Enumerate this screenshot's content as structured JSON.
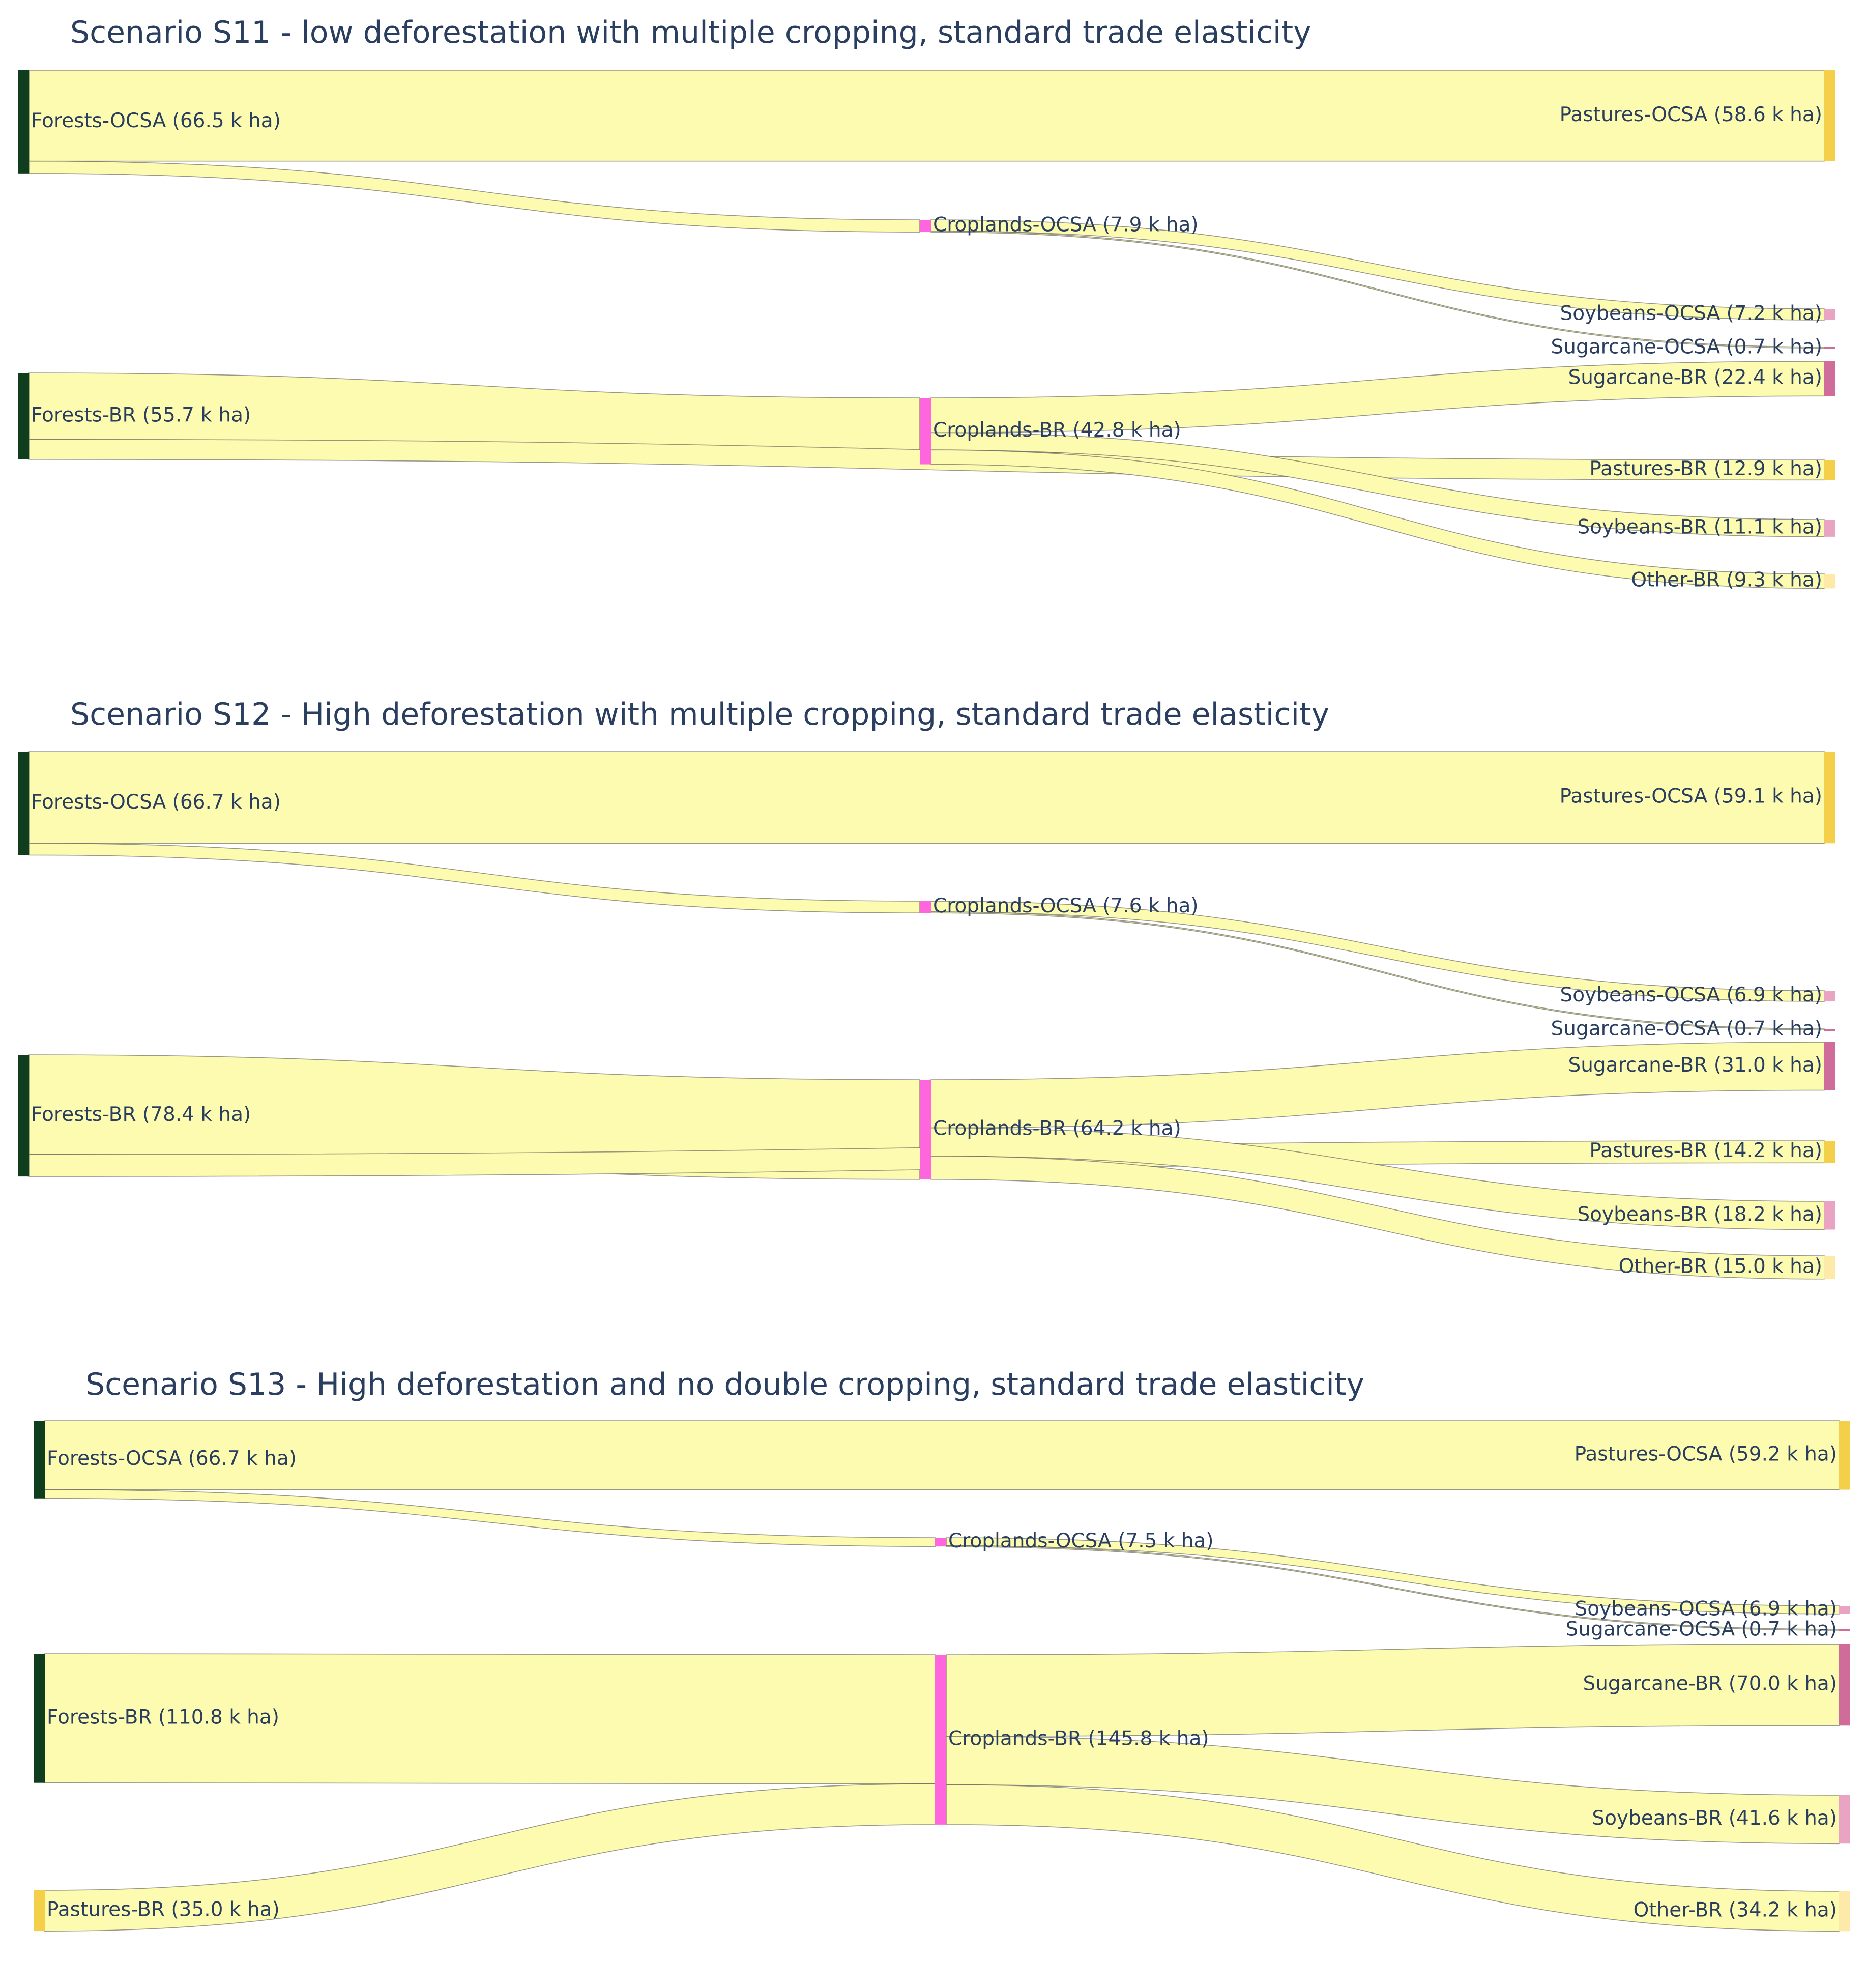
{
  "colors": {
    "forest": "#0f3d1e",
    "pasture": "#f4d04a",
    "cropland": "#ff66dd",
    "soybeans": "#e8a4c2",
    "sugarcane": "#d06c9a",
    "other": "#fde9a8",
    "link": "#fdfbb0"
  },
  "chart_data": [
    {
      "type": "sankey",
      "title": "Scenario S11 - low deforestation with multiple cropping, standard trade elasticity",
      "nodes": [
        {
          "id": "f_ocsa",
          "label": "Forests-OCSA (66.5 k ha)",
          "value": 66.5,
          "stage": 0,
          "color": "forest"
        },
        {
          "id": "f_br",
          "label": "Forests-BR (55.7 k ha)",
          "value": 55.7,
          "stage": 0,
          "color": "forest"
        },
        {
          "id": "c_ocsa",
          "label": "Croplands-OCSA (7.9 k ha)",
          "value": 7.9,
          "stage": 1,
          "color": "cropland"
        },
        {
          "id": "c_br",
          "label": "Croplands-BR (42.8 k ha)",
          "value": 42.8,
          "stage": 1,
          "color": "cropland"
        },
        {
          "id": "p_ocsa",
          "label": "Pastures-OCSA (58.6 k ha)",
          "value": 58.6,
          "stage": 2,
          "color": "pasture"
        },
        {
          "id": "s_ocsa",
          "label": "Soybeans-OCSA (7.2 k ha)",
          "value": 7.2,
          "stage": 2,
          "color": "soybeans"
        },
        {
          "id": "sc_ocsa",
          "label": "Sugarcane-OCSA (0.7 k ha)",
          "value": 0.7,
          "stage": 2,
          "color": "sugarcane"
        },
        {
          "id": "sc_br",
          "label": "Sugarcane-BR (22.4 k ha)",
          "value": 22.4,
          "stage": 2,
          "color": "sugarcane"
        },
        {
          "id": "p_br",
          "label": "Pastures-BR (12.9 k ha)",
          "value": 12.9,
          "stage": 2,
          "color": "pasture"
        },
        {
          "id": "s_br",
          "label": "Soybeans-BR (11.1 k ha)",
          "value": 11.1,
          "stage": 2,
          "color": "soybeans"
        },
        {
          "id": "o_br",
          "label": "Other-BR (9.3 k ha)",
          "value": 9.3,
          "stage": 2,
          "color": "other"
        }
      ],
      "links": [
        {
          "source": "f_ocsa",
          "target": "p_ocsa",
          "value": 58.6
        },
        {
          "source": "f_ocsa",
          "target": "c_ocsa",
          "value": 7.9
        },
        {
          "source": "c_ocsa",
          "target": "s_ocsa",
          "value": 7.2
        },
        {
          "source": "c_ocsa",
          "target": "sc_ocsa",
          "value": 0.7
        },
        {
          "source": "f_br",
          "target": "c_br",
          "value": 42.8
        },
        {
          "source": "f_br",
          "target": "p_br",
          "value": 12.9
        },
        {
          "source": "c_br",
          "target": "sc_br",
          "value": 22.4
        },
        {
          "source": "c_br",
          "target": "s_br",
          "value": 11.1
        },
        {
          "source": "c_br",
          "target": "o_br",
          "value": 9.3
        }
      ]
    },
    {
      "type": "sankey",
      "title": "Scenario S12 - High deforestation with multiple cropping, standard trade elasticity",
      "nodes": [
        {
          "id": "f_ocsa",
          "label": "Forests-OCSA (66.7 k ha)",
          "value": 66.7,
          "stage": 0,
          "color": "forest"
        },
        {
          "id": "f_br",
          "label": "Forests-BR (78.4 k ha)",
          "value": 78.4,
          "stage": 0,
          "color": "forest"
        },
        {
          "id": "c_ocsa",
          "label": "Croplands-OCSA (7.6 k ha)",
          "value": 7.6,
          "stage": 1,
          "color": "cropland"
        },
        {
          "id": "c_br",
          "label": "Croplands-BR (64.2 k ha)",
          "value": 64.2,
          "stage": 1,
          "color": "cropland"
        },
        {
          "id": "p_ocsa",
          "label": "Pastures-OCSA (59.1 k ha)",
          "value": 59.1,
          "stage": 2,
          "color": "pasture"
        },
        {
          "id": "s_ocsa",
          "label": "Soybeans-OCSA (6.9 k ha)",
          "value": 6.9,
          "stage": 2,
          "color": "soybeans"
        },
        {
          "id": "sc_ocsa",
          "label": "Sugarcane-OCSA (0.7 k ha)",
          "value": 0.7,
          "stage": 2,
          "color": "sugarcane"
        },
        {
          "id": "sc_br",
          "label": "Sugarcane-BR (31.0 k ha)",
          "value": 31.0,
          "stage": 2,
          "color": "sugarcane"
        },
        {
          "id": "p_br",
          "label": "Pastures-BR (14.2 k ha)",
          "value": 14.2,
          "stage": 2,
          "color": "pasture"
        },
        {
          "id": "s_br",
          "label": "Soybeans-BR (18.2 k ha)",
          "value": 18.2,
          "stage": 2,
          "color": "soybeans"
        },
        {
          "id": "o_br",
          "label": "Other-BR (15.0 k ha)",
          "value": 15.0,
          "stage": 2,
          "color": "other"
        }
      ],
      "links": [
        {
          "source": "f_ocsa",
          "target": "p_ocsa",
          "value": 59.1
        },
        {
          "source": "f_ocsa",
          "target": "c_ocsa",
          "value": 7.6
        },
        {
          "source": "c_ocsa",
          "target": "s_ocsa",
          "value": 6.9
        },
        {
          "source": "c_ocsa",
          "target": "sc_ocsa",
          "value": 0.7
        },
        {
          "source": "f_br",
          "target": "c_br",
          "value": 64.2
        },
        {
          "source": "f_br",
          "target": "p_br",
          "value": 14.2
        },
        {
          "source": "c_br",
          "target": "sc_br",
          "value": 31.0
        },
        {
          "source": "c_br",
          "target": "s_br",
          "value": 18.2
        },
        {
          "source": "c_br",
          "target": "o_br",
          "value": 15.0
        }
      ]
    },
    {
      "type": "sankey",
      "title": "Scenario S13 - High deforestation and no double cropping, standard trade elasticity",
      "nodes": [
        {
          "id": "f_ocsa",
          "label": "Forests-OCSA (66.7 k ha)",
          "value": 66.7,
          "stage": 0,
          "color": "forest"
        },
        {
          "id": "f_br",
          "label": "Forests-BR (110.8 k ha)",
          "value": 110.8,
          "stage": 0,
          "color": "forest"
        },
        {
          "id": "p_br_src",
          "label": "Pastures-BR (35.0 k ha)",
          "value": 35.0,
          "stage": 0,
          "color": "pasture"
        },
        {
          "id": "c_ocsa",
          "label": "Croplands-OCSA (7.5 k ha)",
          "value": 7.5,
          "stage": 1,
          "color": "cropland"
        },
        {
          "id": "c_br",
          "label": "Croplands-BR (145.8 k ha)",
          "value": 145.8,
          "stage": 1,
          "color": "cropland"
        },
        {
          "id": "p_ocsa",
          "label": "Pastures-OCSA (59.2 k ha)",
          "value": 59.2,
          "stage": 2,
          "color": "pasture"
        },
        {
          "id": "s_ocsa",
          "label": "Soybeans-OCSA (6.9 k ha)",
          "value": 6.9,
          "stage": 2,
          "color": "soybeans"
        },
        {
          "id": "sc_ocsa",
          "label": "Sugarcane-OCSA (0.7 k ha)",
          "value": 0.7,
          "stage": 2,
          "color": "sugarcane"
        },
        {
          "id": "sc_br",
          "label": "Sugarcane-BR (70.0 k ha)",
          "value": 70.0,
          "stage": 2,
          "color": "sugarcane"
        },
        {
          "id": "s_br",
          "label": "Soybeans-BR (41.6 k ha)",
          "value": 41.6,
          "stage": 2,
          "color": "soybeans"
        },
        {
          "id": "o_br",
          "label": "Other-BR (34.2 k ha)",
          "value": 34.2,
          "stage": 2,
          "color": "other"
        }
      ],
      "links": [
        {
          "source": "f_ocsa",
          "target": "p_ocsa",
          "value": 59.2
        },
        {
          "source": "f_ocsa",
          "target": "c_ocsa",
          "value": 7.5
        },
        {
          "source": "c_ocsa",
          "target": "s_ocsa",
          "value": 6.9
        },
        {
          "source": "c_ocsa",
          "target": "sc_ocsa",
          "value": 0.7
        },
        {
          "source": "f_br",
          "target": "c_br",
          "value": 110.8
        },
        {
          "source": "p_br_src",
          "target": "c_br",
          "value": 35.0
        },
        {
          "source": "c_br",
          "target": "sc_br",
          "value": 70.0
        },
        {
          "source": "c_br",
          "target": "s_br",
          "value": 41.6
        },
        {
          "source": "c_br",
          "target": "o_br",
          "value": 34.2
        }
      ]
    }
  ]
}
